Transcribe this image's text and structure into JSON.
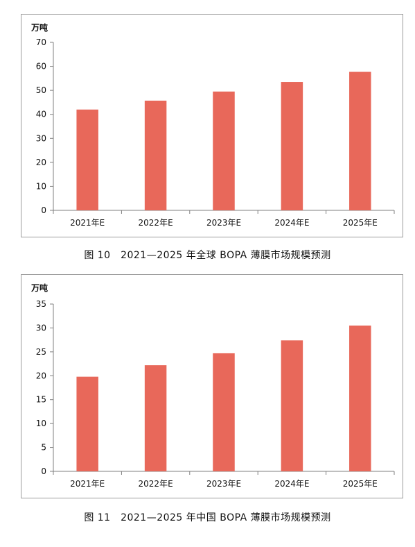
{
  "chart_data": [
    {
      "type": "bar",
      "unit_label": "万吨",
      "categories": [
        "2021年E",
        "2022年E",
        "2023年E",
        "2024年E",
        "2025年E"
      ],
      "values": [
        42,
        45.7,
        49.5,
        53.5,
        57.7
      ],
      "ylim": [
        0,
        70
      ],
      "yticks": [
        "0",
        "10",
        "20",
        "30",
        "40",
        "50",
        "60",
        "70"
      ],
      "bar_color": "#e8685a",
      "grid": false,
      "caption": "图 10　2021—2025 年全球 BOPA 薄膜市场规模预测"
    },
    {
      "type": "bar",
      "unit_label": "万吨",
      "categories": [
        "2021年E",
        "2022年E",
        "2023年E",
        "2024年E",
        "2025年E"
      ],
      "values": [
        19.8,
        22.2,
        24.7,
        27.4,
        30.5
      ],
      "ylim": [
        0,
        35
      ],
      "yticks": [
        "0",
        "5",
        "10",
        "15",
        "20",
        "25",
        "30",
        "35"
      ],
      "bar_color": "#e8685a",
      "grid": false,
      "caption": "图 11　2021—2025 年中国 BOPA 薄膜市场规模预测"
    }
  ]
}
